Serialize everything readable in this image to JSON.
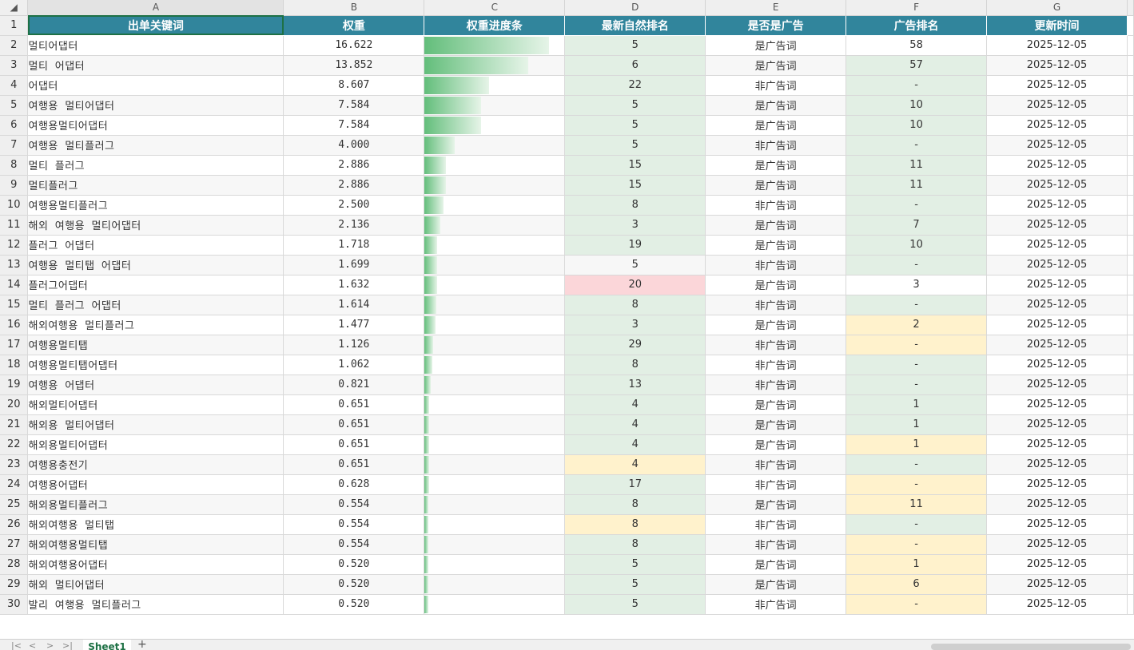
{
  "column_letters": [
    "A",
    "B",
    "C",
    "D",
    "E",
    "F",
    "G"
  ],
  "headers": [
    "出单关键词",
    "权重",
    "权重进度条",
    "最新自然排名",
    "是否是广告",
    "广告排名",
    "更新时间"
  ],
  "rows": [
    {
      "n": "2",
      "kw": "멀티어댑터",
      "w": "16.622",
      "p": 1.0,
      "rank": "5",
      "ad": "是广告词",
      "adr": "58",
      "t": "2025-12-05",
      "dc": "g",
      "fc": ""
    },
    {
      "n": "3",
      "kw": "멀티 어댑터",
      "w": "13.852",
      "p": 0.833,
      "rank": "6",
      "ad": "是广告词",
      "adr": "57",
      "t": "2025-12-05",
      "dc": "g",
      "fc": "g"
    },
    {
      "n": "4",
      "kw": "어댑터",
      "w": "8.607",
      "p": 0.518,
      "rank": "22",
      "ad": "非广告词",
      "adr": "-",
      "t": "2025-12-05",
      "dc": "g",
      "fc": "g"
    },
    {
      "n": "5",
      "kw": "여행용 멀티어댑터",
      "w": "7.584",
      "p": 0.456,
      "rank": "5",
      "ad": "是广告词",
      "adr": "10",
      "t": "2025-12-05",
      "dc": "g",
      "fc": "g"
    },
    {
      "n": "6",
      "kw": "여행용멀티어댑터",
      "w": "7.584",
      "p": 0.456,
      "rank": "5",
      "ad": "是广告词",
      "adr": "10",
      "t": "2025-12-05",
      "dc": "g",
      "fc": "g"
    },
    {
      "n": "7",
      "kw": "여행용 멀티플러그",
      "w": "4.000",
      "p": 0.241,
      "rank": "5",
      "ad": "非广告词",
      "adr": "-",
      "t": "2025-12-05",
      "dc": "g",
      "fc": "g"
    },
    {
      "n": "8",
      "kw": "멀티 플러그",
      "w": "2.886",
      "p": 0.174,
      "rank": "15",
      "ad": "是广告词",
      "adr": "11",
      "t": "2025-12-05",
      "dc": "g",
      "fc": "g"
    },
    {
      "n": "9",
      "kw": "멀티플러그",
      "w": "2.886",
      "p": 0.174,
      "rank": "15",
      "ad": "是广告词",
      "adr": "11",
      "t": "2025-12-05",
      "dc": "g",
      "fc": "g"
    },
    {
      "n": "10",
      "kw": "여행용멀티플러그",
      "w": "2.500",
      "p": 0.15,
      "rank": "8",
      "ad": "非广告词",
      "adr": "-",
      "t": "2025-12-05",
      "dc": "g",
      "fc": "g"
    },
    {
      "n": "11",
      "kw": "해외 여행용 멀티어댑터",
      "w": "2.136",
      "p": 0.129,
      "rank": "3",
      "ad": "是广告词",
      "adr": "7",
      "t": "2025-12-05",
      "dc": "g",
      "fc": "g"
    },
    {
      "n": "12",
      "kw": "플러그 어댑터",
      "w": "1.718",
      "p": 0.103,
      "rank": "19",
      "ad": "是广告词",
      "adr": "10",
      "t": "2025-12-05",
      "dc": "g",
      "fc": "g"
    },
    {
      "n": "13",
      "kw": "여행용 멀티탭 어댑터",
      "w": "1.699",
      "p": 0.102,
      "rank": "5",
      "ad": "非广告词",
      "adr": "-",
      "t": "2025-12-05",
      "dc": "",
      "fc": "g"
    },
    {
      "n": "14",
      "kw": "플러그어댑터",
      "w": "1.632",
      "p": 0.098,
      "rank": "20",
      "ad": "是广告词",
      "adr": "3",
      "t": "2025-12-05",
      "dc": "r",
      "fc": ""
    },
    {
      "n": "15",
      "kw": "멀티 플러그 어댑터",
      "w": "1.614",
      "p": 0.097,
      "rank": "8",
      "ad": "非广告词",
      "adr": "-",
      "t": "2025-12-05",
      "dc": "g",
      "fc": "g"
    },
    {
      "n": "16",
      "kw": "해외여행용 멀티플러그",
      "w": "1.477",
      "p": 0.089,
      "rank": "3",
      "ad": "是广告词",
      "adr": "2",
      "t": "2025-12-05",
      "dc": "g",
      "fc": "y"
    },
    {
      "n": "17",
      "kw": "여행용멀티탭",
      "w": "1.126",
      "p": 0.068,
      "rank": "29",
      "ad": "非广告词",
      "adr": "-",
      "t": "2025-12-05",
      "dc": "g",
      "fc": "y"
    },
    {
      "n": "18",
      "kw": "여행용멀티탭어댑터",
      "w": "1.062",
      "p": 0.064,
      "rank": "8",
      "ad": "非广告词",
      "adr": "-",
      "t": "2025-12-05",
      "dc": "g",
      "fc": "g"
    },
    {
      "n": "19",
      "kw": "여행용 어댑터",
      "w": "0.821",
      "p": 0.049,
      "rank": "13",
      "ad": "非广告词",
      "adr": "-",
      "t": "2025-12-05",
      "dc": "g",
      "fc": "g"
    },
    {
      "n": "20",
      "kw": "해외멀티어댑터",
      "w": "0.651",
      "p": 0.039,
      "rank": "4",
      "ad": "是广告词",
      "adr": "1",
      "t": "2025-12-05",
      "dc": "g",
      "fc": "g"
    },
    {
      "n": "21",
      "kw": "해외용 멀티어댑터",
      "w": "0.651",
      "p": 0.039,
      "rank": "4",
      "ad": "是广告词",
      "adr": "1",
      "t": "2025-12-05",
      "dc": "g",
      "fc": "g"
    },
    {
      "n": "22",
      "kw": "해외용멀티어댑터",
      "w": "0.651",
      "p": 0.039,
      "rank": "4",
      "ad": "是广告词",
      "adr": "1",
      "t": "2025-12-05",
      "dc": "g",
      "fc": "y"
    },
    {
      "n": "23",
      "kw": "여행용충전기",
      "w": "0.651",
      "p": 0.039,
      "rank": "4",
      "ad": "非广告词",
      "adr": "-",
      "t": "2025-12-05",
      "dc": "y",
      "fc": "g"
    },
    {
      "n": "24",
      "kw": "여행용어댑터",
      "w": "0.628",
      "p": 0.038,
      "rank": "17",
      "ad": "非广告词",
      "adr": "-",
      "t": "2025-12-05",
      "dc": "g",
      "fc": "y"
    },
    {
      "n": "25",
      "kw": "해외용멀티플러그",
      "w": "0.554",
      "p": 0.033,
      "rank": "8",
      "ad": "是广告词",
      "adr": "11",
      "t": "2025-12-05",
      "dc": "g",
      "fc": "y"
    },
    {
      "n": "26",
      "kw": "해외여행용 멀티탭",
      "w": "0.554",
      "p": 0.033,
      "rank": "8",
      "ad": "非广告词",
      "adr": "-",
      "t": "2025-12-05",
      "dc": "y",
      "fc": "g"
    },
    {
      "n": "27",
      "kw": "해외여행용멀티탭",
      "w": "0.554",
      "p": 0.033,
      "rank": "8",
      "ad": "非广告词",
      "adr": "-",
      "t": "2025-12-05",
      "dc": "g",
      "fc": "y"
    },
    {
      "n": "28",
      "kw": "해외여행용어댑터",
      "w": "0.520",
      "p": 0.031,
      "rank": "5",
      "ad": "是广告词",
      "adr": "1",
      "t": "2025-12-05",
      "dc": "g",
      "fc": "y"
    },
    {
      "n": "29",
      "kw": "해외 멀티어댑터",
      "w": "0.520",
      "p": 0.031,
      "rank": "5",
      "ad": "是广告词",
      "adr": "6",
      "t": "2025-12-05",
      "dc": "g",
      "fc": "y"
    },
    {
      "n": "30",
      "kw": "발리 여행용 멀티플러그",
      "w": "0.520",
      "p": 0.031,
      "rank": "5",
      "ad": "非广告词",
      "adr": "-",
      "t": "2025-12-05",
      "dc": "g",
      "fc": "y"
    }
  ],
  "sheet_tab": "Sheet1",
  "add_sheet": "+",
  "nav_icons": [
    "first-sheet-icon",
    "prev-sheet-icon",
    "next-sheet-icon",
    "last-sheet-icon"
  ],
  "colors": {
    "header_bg": "#31859c",
    "header_text": "#ffffff",
    "green_fill": "#e2efe4",
    "red_fill": "#fbd6d9",
    "yellow_fill": "#fff2cc",
    "bar": "#63be7b",
    "ad_text": "#3a7b34"
  }
}
